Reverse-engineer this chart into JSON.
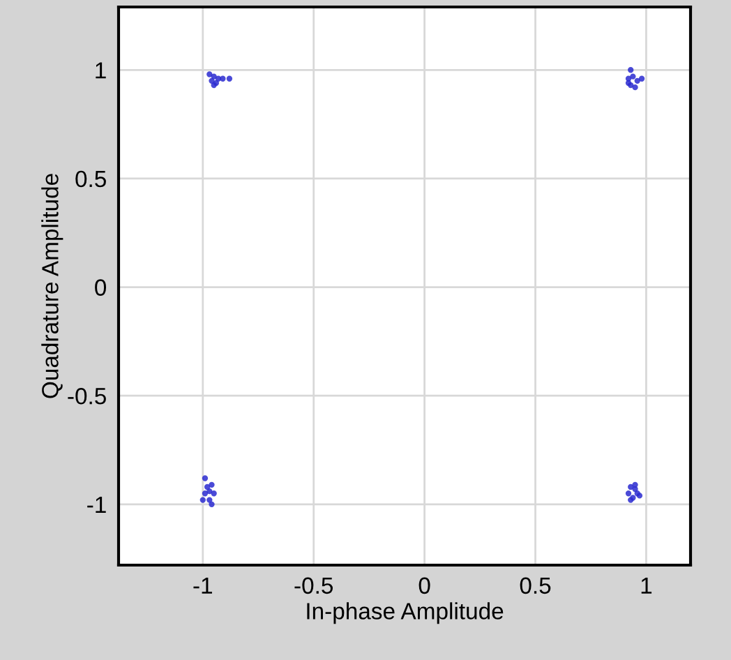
{
  "chart_data": {
    "type": "scatter",
    "xlabel": "In-phase Amplitude",
    "ylabel": "Quadrature Amplitude",
    "x": [
      -0.97,
      -0.95,
      -0.96,
      -0.94,
      -0.93,
      -0.95,
      -0.88,
      -0.91,
      0.93,
      0.92,
      0.94,
      0.96,
      0.98,
      0.93,
      0.95,
      0.92,
      -0.99,
      -0.98,
      -0.96,
      -0.97,
      -0.95,
      -1.0,
      -0.97,
      -0.96,
      -0.99,
      0.93,
      0.95,
      0.92,
      0.96,
      0.94,
      0.97,
      0.93,
      0.95
    ],
    "values": [
      0.98,
      0.97,
      0.95,
      0.94,
      0.96,
      0.93,
      0.96,
      0.96,
      1.0,
      0.96,
      0.97,
      0.95,
      0.96,
      0.93,
      0.92,
      0.94,
      -0.88,
      -0.92,
      -0.91,
      -0.94,
      -0.95,
      -0.98,
      -0.98,
      -1.0,
      -0.95,
      -0.92,
      -0.93,
      -0.95,
      -0.95,
      -0.97,
      -0.96,
      -0.98,
      -0.91
    ],
    "color": "#2a2ad0",
    "marker": "circle",
    "xlim": [
      -1.38,
      1.2
    ],
    "ylim": [
      -1.28,
      1.29
    ],
    "xticks": [
      -1,
      -0.5,
      0,
      0.5,
      1
    ],
    "yticks": [
      -1,
      -0.5,
      0,
      0.5,
      1
    ],
    "grid": true
  }
}
